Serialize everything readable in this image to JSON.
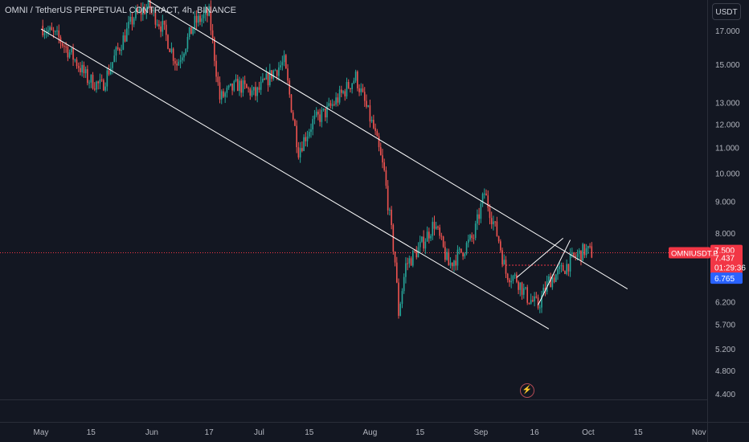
{
  "header": {
    "title": "OMNI / TetherUS PERPETUAL CONTRACT, 4h, BINANCE"
  },
  "toolbar": {
    "currency_label": "USDT",
    "bolt_icon": "lightning-bolt-icon"
  },
  "price_tags": {
    "symbol": "OMNIUSDT.P",
    "high_value": "7.500",
    "last_price": "7.437",
    "countdown": "01:29:36",
    "low_value": "6.765"
  },
  "colors": {
    "background": "#131722",
    "up": "#26a69a",
    "down": "#ef5350",
    "lines": "#ffffff",
    "price_tag": "#f23645",
    "low_tag": "#2962ff"
  },
  "chart_data": {
    "type": "candlestick",
    "title": "OMNI / TetherUS PERPETUAL CONTRACT, 4h, BINANCE",
    "y_scale": "log",
    "y_ticks": [
      17.0,
      15.0,
      13.0,
      12.0,
      11.0,
      10.0,
      9.0,
      8.0,
      6.2,
      5.7,
      5.2,
      4.8,
      4.4
    ],
    "x_ticks": [
      "May",
      "15",
      "Jun",
      "17",
      "Jul",
      "15",
      "Aug",
      "15",
      "Sep",
      "16",
      "Oct",
      "15",
      "Nov"
    ],
    "grid": false,
    "last_price": 7.437,
    "swing_path": [
      [
        "2024-05-01",
        17.3
      ],
      [
        "2024-05-06",
        16.5
      ],
      [
        "2024-05-10",
        15.4
      ],
      [
        "2024-05-14",
        14.2
      ],
      [
        "2024-05-18",
        13.8
      ],
      [
        "2024-05-22",
        15.6
      ],
      [
        "2024-05-27",
        17.9
      ],
      [
        "2024-05-31",
        18.6
      ],
      [
        "2024-06-04",
        17.2
      ],
      [
        "2024-06-08",
        15.0
      ],
      [
        "2024-06-13",
        17.5
      ],
      [
        "2024-06-17",
        18.1
      ],
      [
        "2024-06-20",
        13.2
      ],
      [
        "2024-06-25",
        13.9
      ],
      [
        "2024-06-30",
        13.4
      ],
      [
        "2024-07-05",
        14.6
      ],
      [
        "2024-07-08",
        15.1
      ],
      [
        "2024-07-12",
        10.9
      ],
      [
        "2024-07-16",
        12.1
      ],
      [
        "2024-07-20",
        12.6
      ],
      [
        "2024-07-24",
        13.4
      ],
      [
        "2024-07-28",
        14.3
      ],
      [
        "2024-08-02",
        11.8
      ],
      [
        "2024-08-05",
        10.0
      ],
      [
        "2024-08-08",
        7.2
      ],
      [
        "2024-08-09",
        5.95
      ],
      [
        "2024-08-11",
        7.1
      ],
      [
        "2024-08-15",
        7.6
      ],
      [
        "2024-08-19",
        8.3
      ],
      [
        "2024-08-23",
        7.1
      ],
      [
        "2024-08-26",
        7.4
      ],
      [
        "2024-08-30",
        7.9
      ],
      [
        "2024-09-02",
        9.3
      ],
      [
        "2024-09-06",
        7.8
      ],
      [
        "2024-09-08",
        6.9
      ],
      [
        "2024-09-11",
        6.75
      ],
      [
        "2024-09-14",
        6.3
      ],
      [
        "2024-09-17",
        6.1
      ],
      [
        "2024-09-20",
        6.7
      ],
      [
        "2024-09-24",
        7.0
      ],
      [
        "2024-09-27",
        7.3
      ],
      [
        "2024-09-30",
        7.5
      ],
      [
        "2024-10-02",
        7.437
      ]
    ],
    "trend_lines": [
      {
        "name": "",
        "from": [
          "2024-05-01",
          17.1
        ],
        "to": [
          "2024-09-20",
          5.6
        ]
      },
      {
        "name": "",
        "from": [
          "2024-05-31",
          19.0
        ],
        "to": [
          "2024-10-12",
          6.5
        ]
      },
      {
        "name": "",
        "from": [
          "2024-09-11",
          6.78
        ],
        "to": [
          "2024-09-24",
          7.85
        ]
      },
      {
        "name": "",
        "from": [
          "2024-09-17",
          6.12
        ],
        "to": [
          "2024-09-26",
          7.8
        ]
      }
    ],
    "horizontal_levels": [
      {
        "value": 7.437,
        "style": "dotted"
      },
      {
        "value": 7.1,
        "style": "dotted"
      }
    ]
  }
}
